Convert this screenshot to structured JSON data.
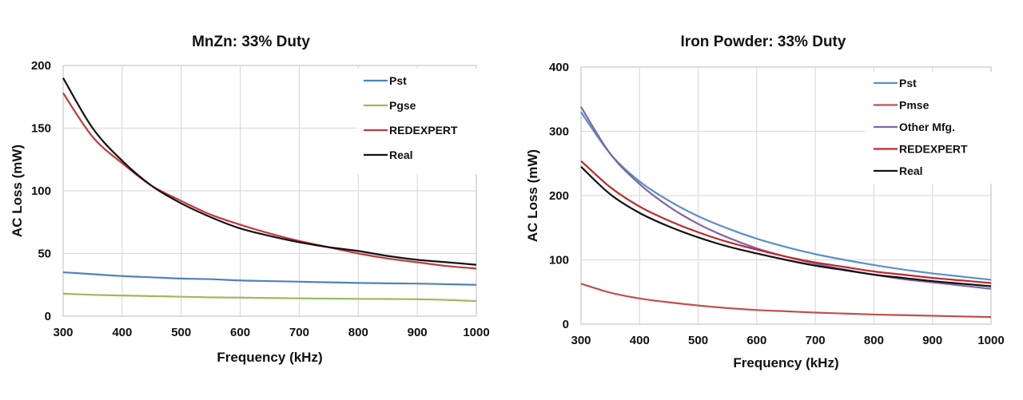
{
  "chart_data": [
    {
      "type": "line",
      "title": "MnZn: 33% Duty",
      "xlabel": "Frequency (kHz)",
      "ylabel": "AC Loss (mW)",
      "xlim": [
        300,
        1000
      ],
      "ylim": [
        0,
        200
      ],
      "xticks": [
        300,
        400,
        500,
        600,
        700,
        800,
        900,
        1000
      ],
      "yticks": [
        0,
        50,
        100,
        150,
        200
      ],
      "grid": true,
      "legend_position": "top-right",
      "x": [
        300,
        350,
        400,
        450,
        500,
        550,
        600,
        650,
        700,
        750,
        800,
        850,
        900,
        950,
        1000
      ],
      "series": [
        {
          "name": "Pst",
          "color": "#4f81bd",
          "values": [
            35,
            33.5,
            32,
            31,
            30,
            29.5,
            28.5,
            28,
            27.5,
            27,
            26.5,
            26.2,
            26,
            25.5,
            25
          ]
        },
        {
          "name": "Pgse",
          "color": "#9bbb59",
          "values": [
            18,
            17,
            16.5,
            16,
            15.5,
            15,
            14.8,
            14.5,
            14.2,
            14,
            13.8,
            13.7,
            13.5,
            13,
            12
          ]
        },
        {
          "name": "REDEXPERT",
          "color": "#c0393b",
          "values": [
            178,
            143,
            122,
            104,
            92,
            81,
            73,
            66,
            60,
            55,
            50,
            46,
            43,
            40,
            38
          ]
        },
        {
          "name": "Real",
          "color": "#111111",
          "values": [
            190,
            150,
            124,
            104,
            90,
            79,
            70,
            64,
            59,
            55,
            52,
            48,
            45,
            43,
            41
          ]
        }
      ]
    },
    {
      "type": "line",
      "title": "Iron Powder: 33% Duty",
      "xlabel": "Frequency (kHz)",
      "ylabel": "AC Loss (mW)",
      "xlim": [
        300,
        1000
      ],
      "ylim": [
        0,
        400
      ],
      "xticks": [
        300,
        400,
        500,
        600,
        700,
        800,
        900,
        1000
      ],
      "yticks": [
        0,
        100,
        200,
        300,
        400
      ],
      "grid": true,
      "legend_position": "top-right",
      "x": [
        300,
        350,
        400,
        450,
        500,
        550,
        600,
        650,
        700,
        750,
        800,
        850,
        900,
        950,
        1000
      ],
      "series": [
        {
          "name": "Pst",
          "color": "#5b8fc9",
          "values": [
            330,
            265,
            222,
            192,
            168,
            149,
            133,
            120,
            109,
            100,
            92,
            85,
            79,
            74,
            69
          ]
        },
        {
          "name": "Pmse",
          "color": "#c0504d",
          "values": [
            63,
            49,
            40,
            34,
            29,
            25,
            22,
            20,
            18,
            16.5,
            15,
            14,
            13,
            12,
            11
          ]
        },
        {
          "name": "Other Mfg.",
          "color": "#8064a2",
          "values": [
            338,
            265,
            218,
            183,
            156,
            135,
            118,
            105,
            94,
            85,
            77,
            70,
            65,
            60,
            55
          ]
        },
        {
          "name": "REDEXPERT",
          "color": "#c0272d",
          "values": [
            254,
            213,
            183,
            161,
            143,
            128,
            116,
            105,
            96,
            89,
            82,
            77,
            72,
            68,
            64
          ]
        },
        {
          "name": "Real",
          "color": "#111111",
          "values": [
            245,
            202,
            173,
            152,
            135,
            121,
            110,
            100,
            91,
            84,
            77,
            72,
            67,
            63,
            59
          ]
        }
      ]
    }
  ]
}
